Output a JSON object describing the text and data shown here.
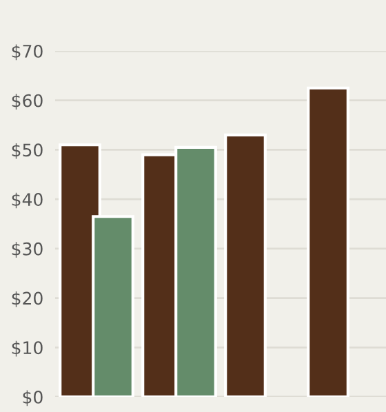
{
  "chart_data": {
    "type": "bar",
    "categories": [
      null,
      null,
      null,
      null
    ],
    "series": [
      {
        "color": "#532f19",
        "values": [
          51,
          49,
          53,
          62.5
        ]
      },
      {
        "color": "#648c6a",
        "values": [
          36.5,
          50.5,
          null,
          null
        ]
      }
    ],
    "ylim": [
      0,
      70
    ],
    "yticks": [
      {
        "value": 0,
        "label": "$0"
      },
      {
        "value": 10,
        "label": "$10"
      },
      {
        "value": 20,
        "label": "$20"
      },
      {
        "value": 30,
        "label": "$30"
      },
      {
        "value": 40,
        "label": "$40"
      },
      {
        "value": 50,
        "label": "$50"
      },
      {
        "value": 60,
        "label": "$60"
      },
      {
        "value": 70,
        "label": "$70"
      }
    ],
    "grid": "y",
    "legend": false
  }
}
